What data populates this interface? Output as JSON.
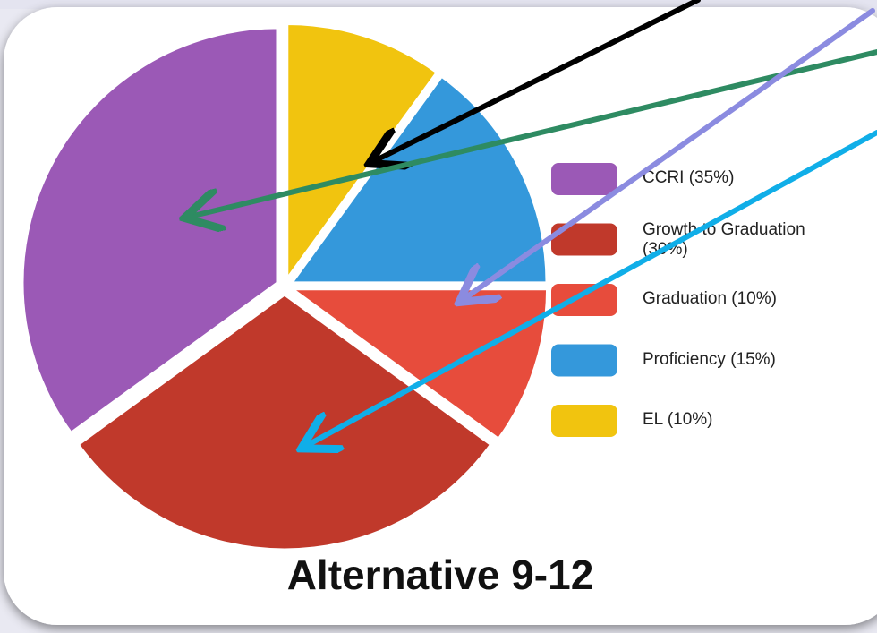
{
  "chart_data": {
    "type": "pie",
    "title": "Alternative 9-12",
    "categories": [
      "CCRI (35%)",
      "Growth to Graduation (30%)",
      "Graduation (10%)",
      "Proficiency (15%)",
      "EL (10%)"
    ],
    "values": [
      35,
      30,
      10,
      15,
      10
    ],
    "colors": [
      "#9b59b6",
      "#c0392b",
      "#e74c3c",
      "#3498db",
      "#f1c40f"
    ],
    "legend": "right"
  }
}
